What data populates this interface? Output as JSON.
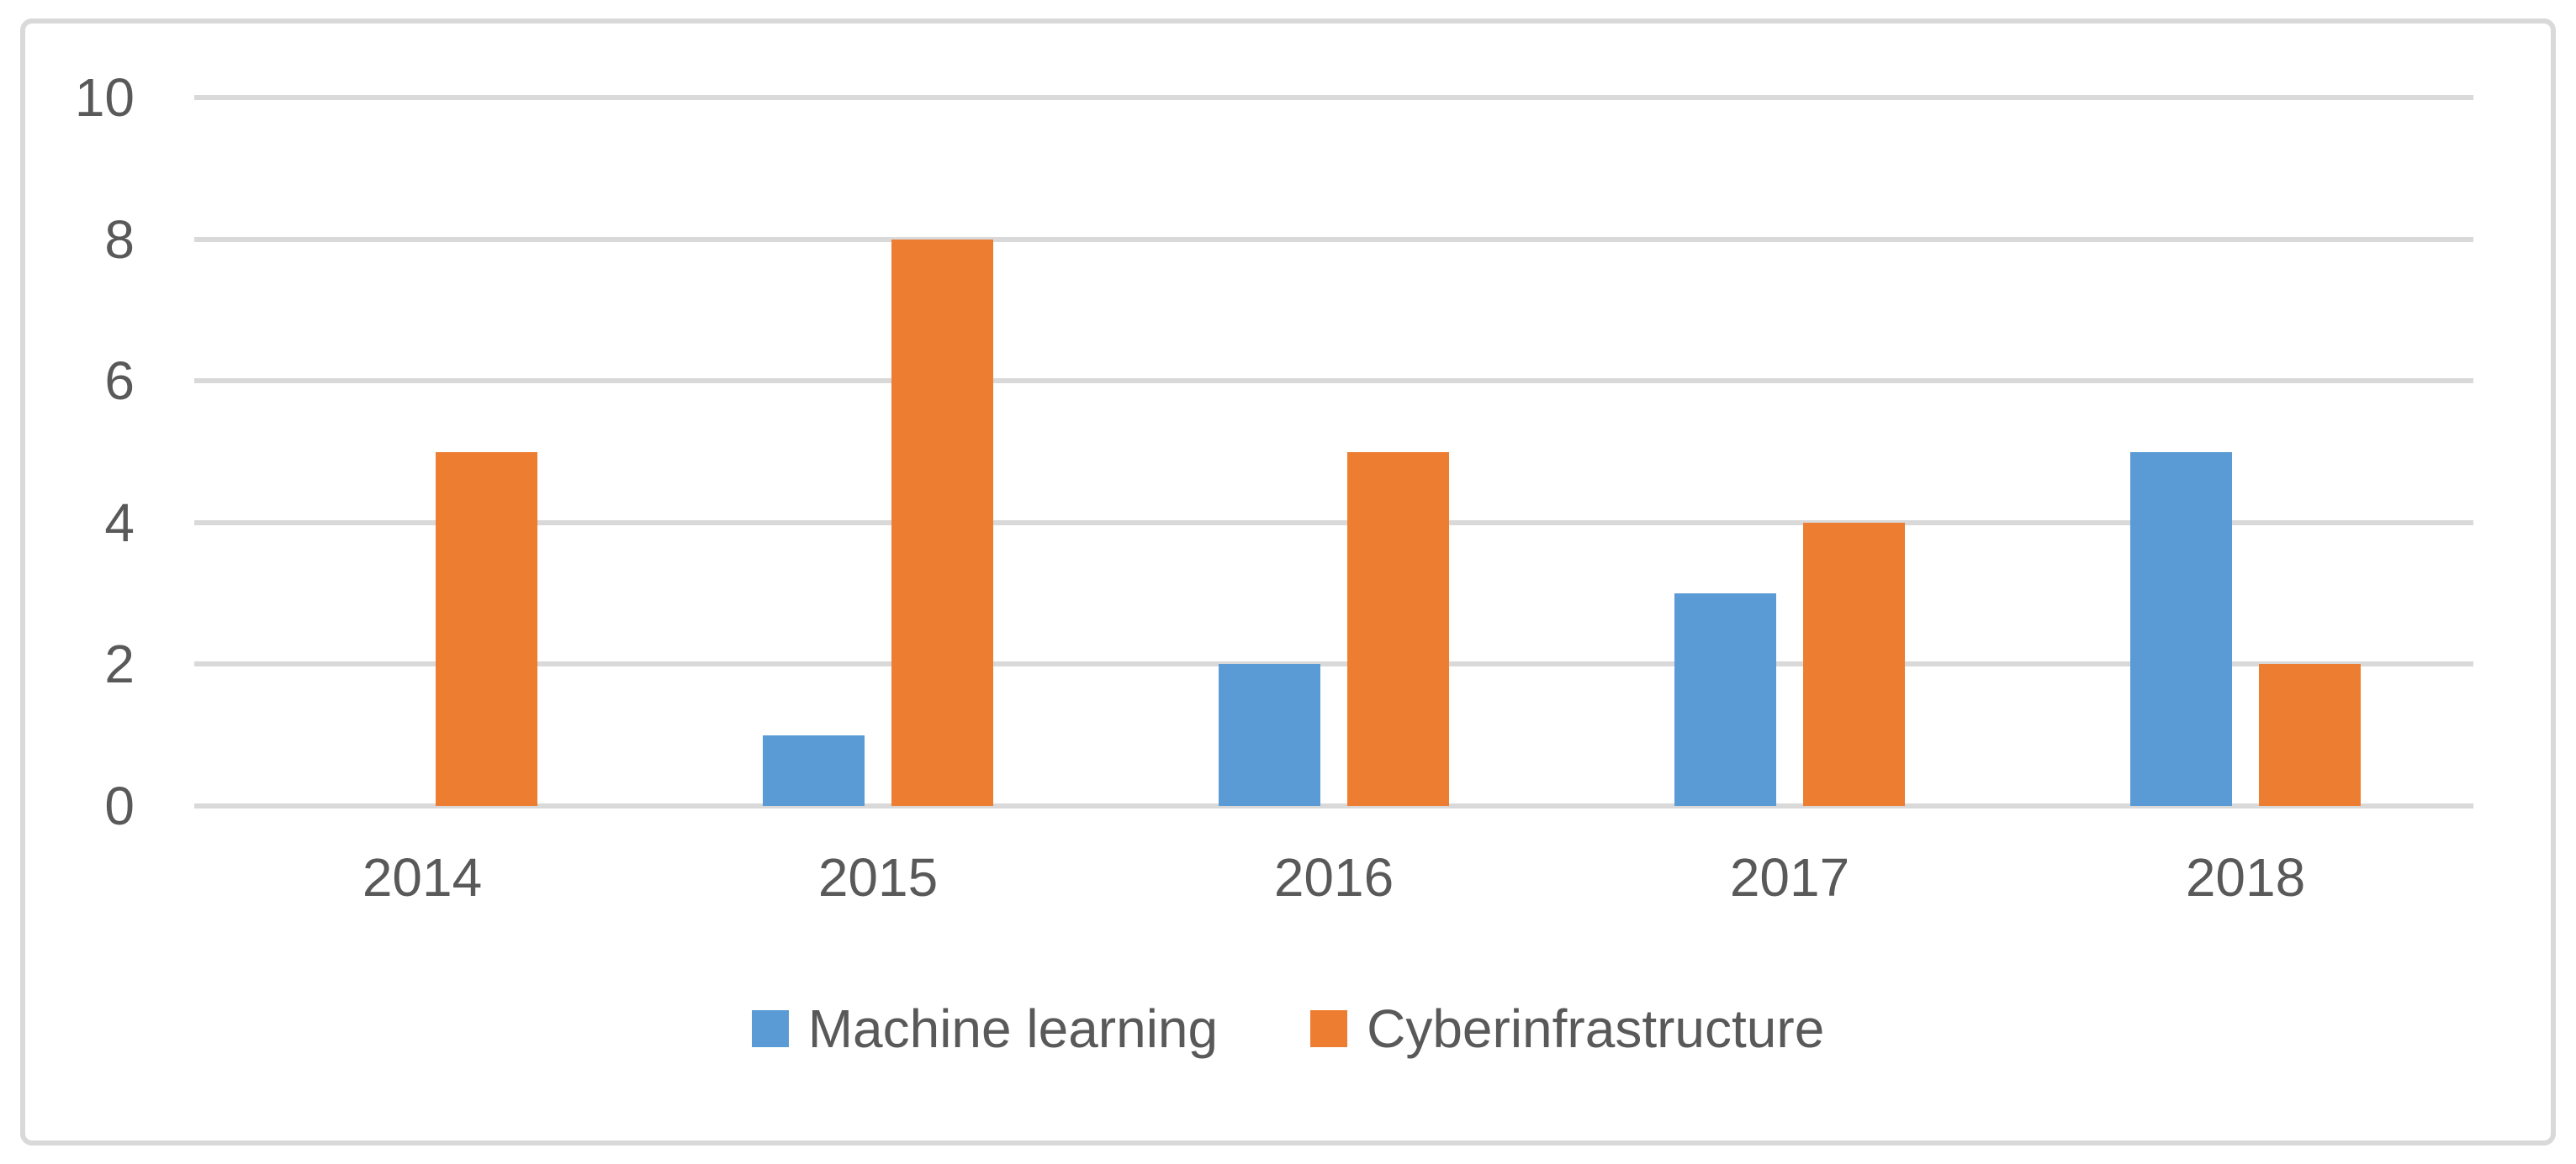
{
  "chart_data": {
    "type": "bar",
    "categories": [
      "2014",
      "2015",
      "2016",
      "2017",
      "2018"
    ],
    "series": [
      {
        "name": "Machine learning",
        "color": "#5B9BD5",
        "values": [
          0,
          1,
          2,
          3,
          5
        ]
      },
      {
        "name": "Cyberinfrastructure",
        "color": "#ED7D31",
        "values": [
          5,
          8,
          5,
          4,
          2
        ]
      }
    ],
    "title": "",
    "xlabel": "",
    "ylabel": "",
    "ylim": [
      0,
      10
    ],
    "yticks": [
      0,
      2,
      4,
      6,
      8,
      10
    ],
    "grid": true,
    "legend_position": "bottom"
  },
  "colors": {
    "gridline": "#D9D9D9",
    "chart_border": "#D9D9D9",
    "tick_label": "#595959",
    "legend_label": "#595959",
    "background": "#FFFFFF"
  }
}
